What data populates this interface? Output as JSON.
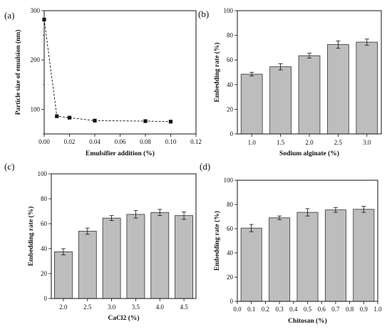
{
  "chart_data": [
    {
      "panel_label": "(a)",
      "type": "line",
      "x": [
        0.0,
        0.01,
        0.02,
        0.04,
        0.08,
        0.1
      ],
      "y": [
        282,
        86,
        83,
        77,
        76,
        75
      ],
      "xlabel": "Emulsifier addition (%)",
      "ylabel": "Particle size of emulsion (nm)",
      "xlim": [
        0.0,
        0.12
      ],
      "ylim": [
        50,
        300
      ],
      "xticks": [
        "0.00",
        "0.02",
        "0.04",
        "0.06",
        "0.08",
        "0.10",
        "0.12"
      ],
      "yticks": [
        "100",
        "200",
        "300"
      ],
      "marker": "square",
      "line_style": "dashed",
      "color": "#111111"
    },
    {
      "panel_label": "(b)",
      "type": "bar",
      "categories": [
        "1.0",
        "1.5",
        "2.0",
        "2.5",
        "3.0"
      ],
      "values": [
        48.5,
        54.5,
        63.5,
        72.5,
        74.5
      ],
      "errors": [
        1.5,
        2.5,
        2.0,
        3.0,
        2.5
      ],
      "xlabel": "Sodium alginate (%)",
      "ylabel": "Embedding rate (%)",
      "ylim": [
        0,
        100
      ],
      "yticks": [
        "0",
        "20",
        "40",
        "60",
        "80",
        "100"
      ],
      "bar_color": "#bdbdbd"
    },
    {
      "panel_label": "(c)",
      "type": "bar",
      "categories": [
        "2.0",
        "2.5",
        "3.0",
        "3.5",
        "4.0",
        "4.5"
      ],
      "values": [
        37.5,
        54,
        64.5,
        67.5,
        69,
        66.5
      ],
      "errors": [
        2.5,
        2.5,
        2.0,
        3.0,
        2.5,
        3.0
      ],
      "xlabel": "CaCl2 (%)",
      "ylabel": "Embedding rate (%)",
      "ylim": [
        0,
        100
      ],
      "yticks": [
        "0",
        "20",
        "40",
        "60",
        "80",
        "100"
      ],
      "bar_color": "#bdbdbd"
    },
    {
      "panel_label": "(d)",
      "type": "bar",
      "categories": [
        "0.1",
        "0.3",
        "0.5",
        "0.7",
        "0.9"
      ],
      "x": [
        0.1,
        0.3,
        0.5,
        0.7,
        0.9
      ],
      "values": [
        60.5,
        69,
        73.5,
        75.5,
        76
      ],
      "errors": [
        3.0,
        1.5,
        3.0,
        2.0,
        2.5
      ],
      "xlabel": "Chitosan (%)",
      "ylabel": "Embedding rate (%)",
      "xlim": [
        0.0,
        1.0
      ],
      "xticks": [
        "0.0",
        "0.1",
        "0.2",
        "0.3",
        "0.4",
        "0.5",
        "0.6",
        "0.7",
        "0.8",
        "0.9",
        "1.0"
      ],
      "ylim": [
        0,
        100
      ],
      "yticks": [
        "0",
        "20",
        "40",
        "60",
        "80",
        "100"
      ],
      "bar_color": "#bdbdbd"
    }
  ]
}
